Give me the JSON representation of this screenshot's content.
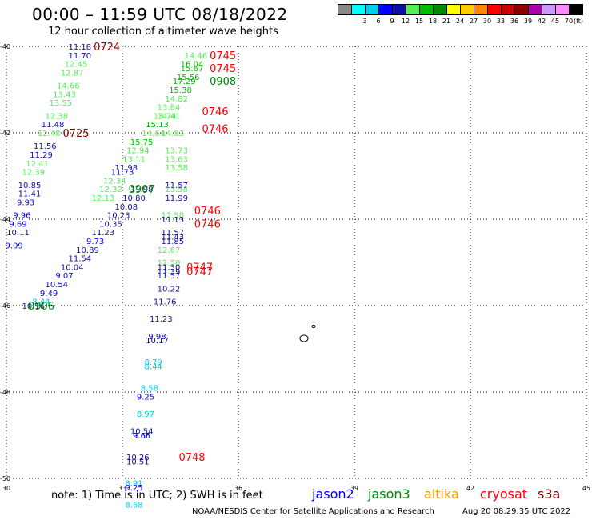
{
  "title": "00:00 – 11:59 UTC 08/18/2022",
  "subtitle": "12 hour collection of altimeter wave heights",
  "note": "note: 1) Time is in UTC; 2) SWH is in feet",
  "credit": "NOAA/NESDIS Center for Satellite Applications and Research",
  "timestamp": "Aug 20 08:29:35 UTC 2022",
  "satellites": [
    {
      "name": "jason2",
      "color": "#0000ff"
    },
    {
      "name": "jason3",
      "color": "#008800"
    },
    {
      "name": "altika",
      "color": "#ff9900"
    },
    {
      "name": "cryosat",
      "color": "#ff0000"
    },
    {
      "name": "s3a",
      "color": "#880000"
    }
  ],
  "color_scale": {
    "unit": "(ft)",
    "bins": [
      {
        "label": "",
        "color": "#888888"
      },
      {
        "label": "3",
        "color": "#00ffff"
      },
      {
        "label": "6",
        "color": "#00ccee"
      },
      {
        "label": "9",
        "color": "#0000ff"
      },
      {
        "label": "12",
        "color": "#1010a0"
      },
      {
        "label": "15",
        "color": "#55ee55"
      },
      {
        "label": "18",
        "color": "#00bb00"
      },
      {
        "label": "21",
        "color": "#008800"
      },
      {
        "label": "24",
        "color": "#ffff00"
      },
      {
        "label": "27",
        "color": "#ffcc00"
      },
      {
        "label": "30",
        "color": "#ff8800"
      },
      {
        "label": "33",
        "color": "#ff0000"
      },
      {
        "label": "36",
        "color": "#cc0000"
      },
      {
        "label": "39",
        "color": "#880000"
      },
      {
        "label": "42",
        "color": "#aa00aa"
      },
      {
        "label": "45",
        "color": "#cc99ff"
      },
      {
        "label": "70",
        "color": "#ff88ff"
      },
      {
        "label": "",
        "color": "#000000"
      }
    ]
  },
  "chart_data": {
    "type": "scatter",
    "title": "00:00 – 11:59 UTC 08/18/2022",
    "subtitle": "12 hour collection of altimeter wave heights",
    "xlim": [
      30,
      45
    ],
    "ylim": [
      -50,
      -40
    ],
    "x_ticks": [
      "30",
      "33",
      "36",
      "39",
      "42",
      "45"
    ],
    "y_ticks": [
      "-40",
      "-42",
      "-44",
      "-46",
      "-48",
      "-50"
    ],
    "grid": true,
    "points": [
      {
        "lon": 31.9,
        "lat": -40.0,
        "v": "11.18",
        "c": "#1010a0"
      },
      {
        "lon": 31.9,
        "lat": -40.2,
        "v": "11.70",
        "c": "#1010a0"
      },
      {
        "lon": 31.8,
        "lat": -40.4,
        "v": "12.45",
        "c": "#55ee55"
      },
      {
        "lon": 31.7,
        "lat": -40.6,
        "v": "12.87",
        "c": "#55ee55"
      },
      {
        "lon": 31.6,
        "lat": -40.9,
        "v": "14.66",
        "c": "#55ee55"
      },
      {
        "lon": 31.5,
        "lat": -41.1,
        "v": "13.43",
        "c": "#55ee55"
      },
      {
        "lon": 31.4,
        "lat": -41.3,
        "v": "13.55",
        "c": "#55ee55"
      },
      {
        "lon": 31.3,
        "lat": -41.6,
        "v": "12.38",
        "c": "#55ee55"
      },
      {
        "lon": 31.2,
        "lat": -41.8,
        "v": "11.48",
        "c": "#1010a0"
      },
      {
        "lon": 31.1,
        "lat": -42.0,
        "v": "12.48",
        "c": "#55ee55"
      },
      {
        "lon": 31.0,
        "lat": -42.3,
        "v": "11.56",
        "c": "#1010a0"
      },
      {
        "lon": 30.9,
        "lat": -42.5,
        "v": "11.29",
        "c": "#1010a0"
      },
      {
        "lon": 30.8,
        "lat": -42.7,
        "v": "12.41",
        "c": "#55ee55"
      },
      {
        "lon": 30.7,
        "lat": -42.9,
        "v": "12.39",
        "c": "#55ee55"
      },
      {
        "lon": 30.6,
        "lat": -43.2,
        "v": "10.85",
        "c": "#1010a0"
      },
      {
        "lon": 30.6,
        "lat": -43.4,
        "v": "11.41",
        "c": "#1010a0"
      },
      {
        "lon": 30.5,
        "lat": -43.6,
        "v": "9.93",
        "c": "#0000ff"
      },
      {
        "lon": 30.4,
        "lat": -43.9,
        "v": "9.96",
        "c": "#0000ff"
      },
      {
        "lon": 30.3,
        "lat": -44.1,
        "v": "9.69",
        "c": "#0000ff"
      },
      {
        "lon": 30.3,
        "lat": -44.3,
        "v": "10.11",
        "c": "#1010a0"
      },
      {
        "lon": 30.2,
        "lat": -44.6,
        "v": "9.99",
        "c": "#0000ff"
      },
      {
        "lon": 33.5,
        "lat": -43.3,
        "v": "11.98",
        "c": "#1010a0"
      },
      {
        "lon": 33.3,
        "lat": -43.5,
        "v": "10.80",
        "c": "#1010a0"
      },
      {
        "lon": 33.1,
        "lat": -43.7,
        "v": "10.08",
        "c": "#1010a0"
      },
      {
        "lon": 32.9,
        "lat": -43.9,
        "v": "10.23",
        "c": "#1010a0"
      },
      {
        "lon": 32.7,
        "lat": -44.1,
        "v": "10.35",
        "c": "#1010a0"
      },
      {
        "lon": 32.5,
        "lat": -44.3,
        "v": "11.23",
        "c": "#1010a0"
      },
      {
        "lon": 32.3,
        "lat": -44.5,
        "v": "9.73",
        "c": "#0000ff"
      },
      {
        "lon": 32.1,
        "lat": -44.7,
        "v": "10.89",
        "c": "#1010a0"
      },
      {
        "lon": 31.9,
        "lat": -44.9,
        "v": "11.54",
        "c": "#1010a0"
      },
      {
        "lon": 31.7,
        "lat": -45.1,
        "v": "10.04",
        "c": "#1010a0"
      },
      {
        "lon": 31.5,
        "lat": -45.3,
        "v": "9.07",
        "c": "#0000ff"
      },
      {
        "lon": 31.3,
        "lat": -45.5,
        "v": "10.54",
        "c": "#1010a0"
      },
      {
        "lon": 31.1,
        "lat": -45.7,
        "v": "9.49",
        "c": "#0000ff"
      },
      {
        "lon": 30.9,
        "lat": -45.9,
        "v": "8.44",
        "c": "#00ccee"
      },
      {
        "lon": 30.7,
        "lat": -46.0,
        "v": "10.16",
        "c": "#1010a0"
      },
      {
        "lon": 34.9,
        "lat": -40.2,
        "v": "14.46",
        "c": "#55ee55"
      },
      {
        "lon": 34.8,
        "lat": -40.4,
        "v": "16.04",
        "c": "#00bb00"
      },
      {
        "lon": 34.8,
        "lat": -40.5,
        "v": "15.67",
        "c": "#00bb00"
      },
      {
        "lon": 34.7,
        "lat": -40.7,
        "v": "15.56",
        "c": "#00bb00"
      },
      {
        "lon": 34.6,
        "lat": -40.8,
        "v": "17.29",
        "c": "#00bb00"
      },
      {
        "lon": 34.5,
        "lat": -41.0,
        "v": "15.38",
        "c": "#00bb00"
      },
      {
        "lon": 34.4,
        "lat": -41.2,
        "v": "14.82",
        "c": "#55ee55"
      },
      {
        "lon": 34.2,
        "lat": -41.4,
        "v": "13.84",
        "c": "#55ee55"
      },
      {
        "lon": 34.2,
        "lat": -41.6,
        "v": "14.41",
        "c": "#55ee55"
      },
      {
        "lon": 34.1,
        "lat": -41.6,
        "v": "13.74",
        "c": "#55ee55"
      },
      {
        "lon": 33.9,
        "lat": -41.8,
        "v": "15.13",
        "c": "#00bb00"
      },
      {
        "lon": 33.8,
        "lat": -42.0,
        "v": "14.64",
        "c": "#55ee55"
      },
      {
        "lon": 34.3,
        "lat": -42.0,
        "v": "14.83",
        "c": "#55ee55"
      },
      {
        "lon": 33.5,
        "lat": -42.2,
        "v": "15.75",
        "c": "#00bb00"
      },
      {
        "lon": 33.4,
        "lat": -42.4,
        "v": "12.94",
        "c": "#55ee55"
      },
      {
        "lon": 33.3,
        "lat": -42.6,
        "v": "13.11",
        "c": "#55ee55"
      },
      {
        "lon": 33.1,
        "lat": -42.8,
        "v": "11.98",
        "c": "#1010a0"
      },
      {
        "lon": 33.0,
        "lat": -42.9,
        "v": "11.73",
        "c": "#1010a0"
      },
      {
        "lon": 32.8,
        "lat": -43.1,
        "v": "12.34",
        "c": "#55ee55"
      },
      {
        "lon": 32.7,
        "lat": -43.3,
        "v": "12.32",
        "c": "#55ee55"
      },
      {
        "lon": 32.5,
        "lat": -43.5,
        "v": "12.13",
        "c": "#55ee55"
      },
      {
        "lon": 34.4,
        "lat": -42.4,
        "v": "13.73",
        "c": "#55ee55"
      },
      {
        "lon": 34.4,
        "lat": -42.6,
        "v": "13.63",
        "c": "#55ee55"
      },
      {
        "lon": 34.4,
        "lat": -42.8,
        "v": "13.58",
        "c": "#55ee55"
      },
      {
        "lon": 34.4,
        "lat": -43.2,
        "v": "11.57",
        "c": "#1010a0"
      },
      {
        "lon": 34.4,
        "lat": -43.3,
        "v": "13.58",
        "c": "#55ee55"
      },
      {
        "lon": 34.4,
        "lat": -43.5,
        "v": "11.99",
        "c": "#1010a0"
      },
      {
        "lon": 34.3,
        "lat": -43.9,
        "v": "12.50",
        "c": "#55ee55"
      },
      {
        "lon": 34.3,
        "lat": -44.0,
        "v": "11.13",
        "c": "#1010a0"
      },
      {
        "lon": 34.3,
        "lat": -44.3,
        "v": "11.57",
        "c": "#1010a0"
      },
      {
        "lon": 34.3,
        "lat": -44.4,
        "v": "11.43",
        "c": "#1010a0"
      },
      {
        "lon": 34.3,
        "lat": -44.5,
        "v": "11.85",
        "c": "#1010a0"
      },
      {
        "lon": 34.2,
        "lat": -44.7,
        "v": "12.67",
        "c": "#55ee55"
      },
      {
        "lon": 34.2,
        "lat": -45.0,
        "v": "12.50",
        "c": "#55ee55"
      },
      {
        "lon": 34.2,
        "lat": -45.1,
        "v": "11.30",
        "c": "#1010a0"
      },
      {
        "lon": 34.2,
        "lat": -45.2,
        "v": "11.39",
        "c": "#1010a0"
      },
      {
        "lon": 34.2,
        "lat": -45.3,
        "v": "11.57",
        "c": "#1010a0"
      },
      {
        "lon": 34.2,
        "lat": -45.6,
        "v": "10.22",
        "c": "#1010a0"
      },
      {
        "lon": 34.1,
        "lat": -45.9,
        "v": "11.76",
        "c": "#1010a0"
      },
      {
        "lon": 34.0,
        "lat": -46.3,
        "v": "11.23",
        "c": "#1010a0"
      },
      {
        "lon": 33.9,
        "lat": -46.7,
        "v": "9.98",
        "c": "#0000ff"
      },
      {
        "lon": 33.9,
        "lat": -46.8,
        "v": "10.17",
        "c": "#1010a0"
      },
      {
        "lon": 33.8,
        "lat": -47.3,
        "v": "8.79",
        "c": "#00ccee"
      },
      {
        "lon": 33.8,
        "lat": -47.4,
        "v": "8.44",
        "c": "#00ccee"
      },
      {
        "lon": 33.7,
        "lat": -47.9,
        "v": "8.58",
        "c": "#00ccee"
      },
      {
        "lon": 33.6,
        "lat": -48.1,
        "v": "9.25",
        "c": "#0000ff"
      },
      {
        "lon": 33.6,
        "lat": -48.5,
        "v": "8.97",
        "c": "#00ccee"
      },
      {
        "lon": 33.5,
        "lat": -48.9,
        "v": "10.54",
        "c": "#1010a0"
      },
      {
        "lon": 33.5,
        "lat": -49.0,
        "v": "9.65",
        "c": "#0000ff"
      },
      {
        "lon": 33.5,
        "lat": -49.0,
        "v": "9.66",
        "c": "#0000ff"
      },
      {
        "lon": 33.4,
        "lat": -49.5,
        "v": "10.26",
        "c": "#1010a0"
      },
      {
        "lon": 33.4,
        "lat": -49.6,
        "v": "10.51",
        "c": "#1010a0"
      },
      {
        "lon": 33.3,
        "lat": -50.1,
        "v": "8.91",
        "c": "#00ccee"
      },
      {
        "lon": 33.3,
        "lat": -50.2,
        "v": "9.25",
        "c": "#0000ff"
      },
      {
        "lon": 33.3,
        "lat": -50.6,
        "v": "8.68",
        "c": "#00ccee"
      }
    ],
    "time_labels": [
      {
        "lon": 32.6,
        "lat": -40.0,
        "t": "0724",
        "c": "#880000"
      },
      {
        "lon": 31.8,
        "lat": -42.0,
        "t": "0725",
        "c": "#880000"
      },
      {
        "lon": 35.6,
        "lat": -40.2,
        "t": "0745",
        "c": "#ff0000"
      },
      {
        "lon": 35.6,
        "lat": -40.5,
        "t": "0745",
        "c": "#ff0000"
      },
      {
        "lon": 35.6,
        "lat": -40.8,
        "t": "0908",
        "c": "#008800"
      },
      {
        "lon": 35.4,
        "lat": -41.5,
        "t": "0746",
        "c": "#ff0000"
      },
      {
        "lon": 35.4,
        "lat": -41.9,
        "t": "0746",
        "c": "#ff0000"
      },
      {
        "lon": 33.5,
        "lat": -43.3,
        "t": "0907",
        "c": "#008800"
      },
      {
        "lon": 35.2,
        "lat": -43.8,
        "t": "0746",
        "c": "#ff0000"
      },
      {
        "lon": 35.2,
        "lat": -44.1,
        "t": "0746",
        "c": "#ff0000"
      },
      {
        "lon": 35.0,
        "lat": -45.1,
        "t": "0747",
        "c": "#ff0000"
      },
      {
        "lon": 35.0,
        "lat": -45.2,
        "t": "0747",
        "c": "#ff0000"
      },
      {
        "lon": 30.9,
        "lat": -46.0,
        "t": "0906",
        "c": "#008800"
      },
      {
        "lon": 34.8,
        "lat": -49.5,
        "t": "0748",
        "c": "#ff0000"
      }
    ]
  }
}
